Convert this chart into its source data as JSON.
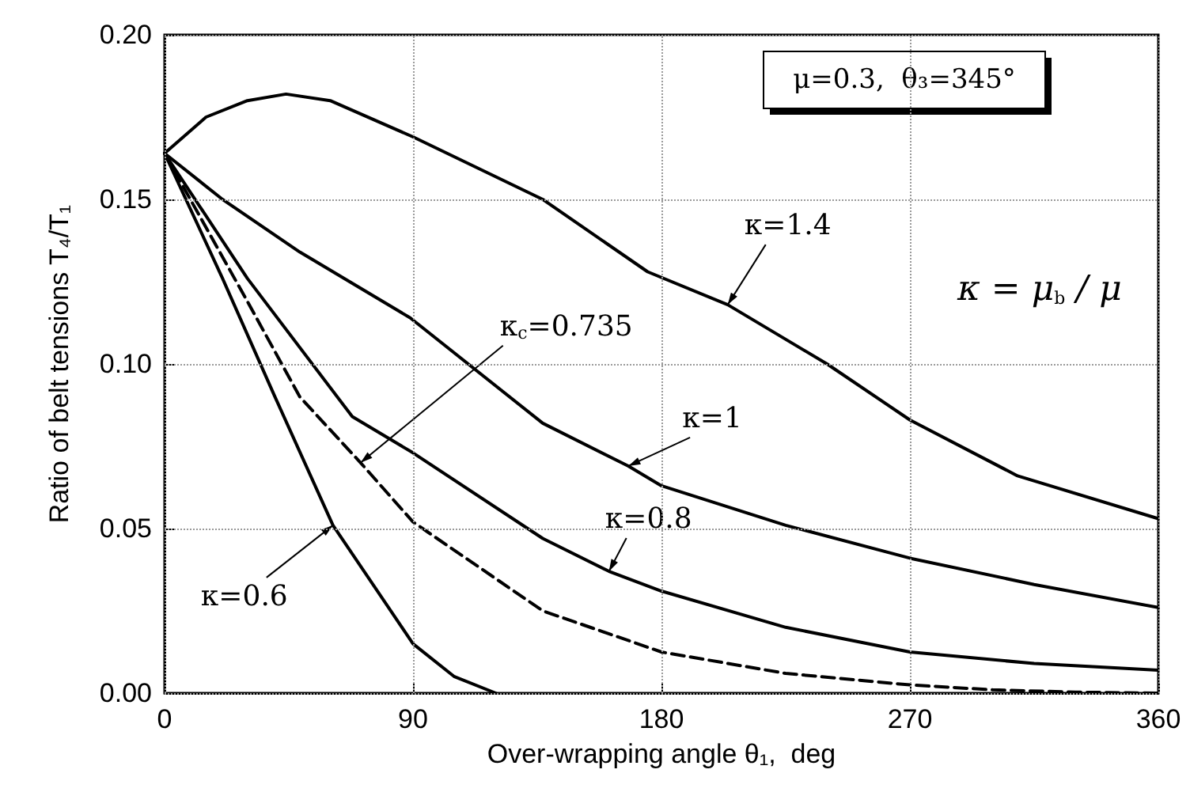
{
  "chart_data": {
    "type": "line",
    "xlabel": "Over-wrapping angle θ₁,  deg",
    "ylabel": "Ratio of belt tensions T₄/T₁",
    "xlim": [
      0,
      360
    ],
    "xticks": [
      0,
      90,
      180,
      270,
      360
    ],
    "ylim": [
      0,
      0.2
    ],
    "yticks": [
      {
        "value": 0,
        "label": "0.00"
      },
      {
        "value": 0.05,
        "label": "0.05"
      },
      {
        "value": 0.1,
        "label": "0.10"
      },
      {
        "value": 0.15,
        "label": "0.15"
      },
      {
        "value": 0.2,
        "label": "0.20"
      }
    ],
    "grid": true,
    "marker": "none",
    "series": [
      {
        "color": "#000000",
        "line_style": "solid",
        "x": [
          0,
          15,
          30,
          44,
          60,
          90,
          137,
          175,
          204,
          240,
          270,
          309,
          360
        ],
        "values": [
          0.164,
          0.175,
          0.18,
          0.182,
          0.18,
          0.169,
          0.15,
          0.128,
          0.118,
          0.1,
          0.083,
          0.066,
          0.053
        ]
      },
      {
        "color": "#000000",
        "line_style": "solid",
        "x": [
          0,
          21,
          49,
          89,
          137,
          168,
          180,
          225,
          270,
          315,
          360
        ],
        "values": [
          0.164,
          0.15,
          0.134,
          0.114,
          0.082,
          0.069,
          0.063,
          0.051,
          0.041,
          0.033,
          0.026
        ]
      },
      {
        "color": "#000000",
        "line_style": "solid",
        "x": [
          0,
          30,
          68,
          90,
          137,
          161,
          180,
          225,
          270,
          315,
          360
        ],
        "values": [
          0.164,
          0.126,
          0.084,
          0.073,
          0.047,
          0.037,
          0.031,
          0.02,
          0.0125,
          0.009,
          0.007
        ]
      },
      {
        "color": "#000000",
        "line_style": "dashed",
        "x": [
          0,
          30,
          49,
          71,
          90,
          137,
          180,
          225,
          270,
          300,
          330,
          360
        ],
        "values": [
          0.164,
          0.119,
          0.09,
          0.07,
          0.052,
          0.025,
          0.0125,
          0.006,
          0.0025,
          0.001,
          0.0003,
          0
        ]
      },
      {
        "color": "#000000",
        "line_style": "solid",
        "x": [
          0,
          21,
          40,
          61,
          90,
          105,
          120
        ],
        "values": [
          0.164,
          0.126,
          0.09,
          0.051,
          0.015,
          0.005,
          0
        ]
      }
    ],
    "annotations": [
      {
        "text": "κ=1.4",
        "x": 204,
        "y": 0.118
      },
      {
        "text": "κ=1",
        "x": 168,
        "y": 0.069
      },
      {
        "text": "κ=0.8",
        "x": 161,
        "y": 0.037
      },
      {
        "text": "κ$_{c}$=0.735",
        "x": 71,
        "y": 0.07
      },
      {
        "text": "κ=0.6",
        "x": 61,
        "y": 0.051
      },
      "μ=0.3,  θ₃=345°",
      "κ = μ$_{b}$ / μ"
    ]
  }
}
